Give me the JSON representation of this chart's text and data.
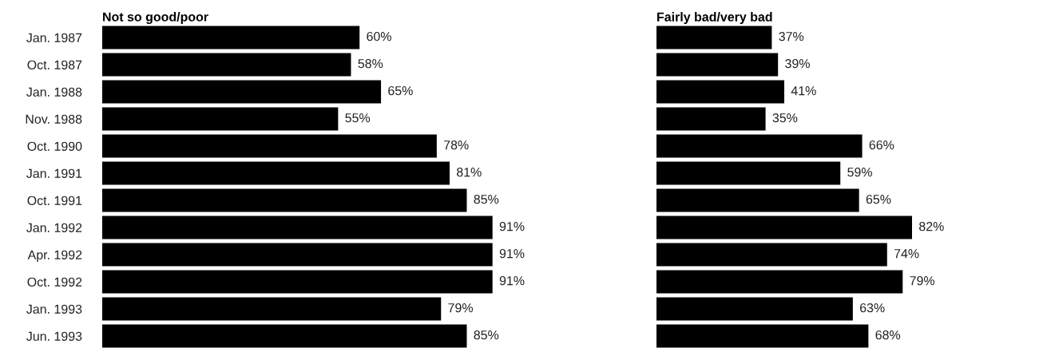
{
  "chart_data": [
    {
      "type": "bar",
      "orientation": "horizontal",
      "title": "Not so good/poor",
      "categories": [
        "Jan. 1987",
        "Oct. 1987",
        "Jan. 1988",
        "Nov. 1988",
        "Oct. 1990",
        "Jan. 1991",
        "Oct. 1991",
        "Jan. 1992",
        "Apr. 1992",
        "Oct. 1992",
        "Jan. 1993",
        "Jun. 1993"
      ],
      "values": [
        60,
        58,
        65,
        55,
        78,
        81,
        85,
        91,
        91,
        91,
        79,
        85
      ],
      "color": "#000000",
      "data_labels": true,
      "value_labels": [
        "60%",
        "58%",
        "65%",
        "55%",
        "78%",
        "81%",
        "85%",
        "91%",
        "91%",
        "91%",
        "79%",
        "85%"
      ],
      "grid": false,
      "legend": false
    },
    {
      "type": "bar",
      "orientation": "horizontal",
      "title": "Fairly bad/very bad",
      "categories": [
        null,
        null,
        null,
        null,
        null,
        null,
        null,
        null,
        null,
        null,
        null,
        null
      ],
      "values": [
        37,
        39,
        41,
        35,
        66,
        59,
        65,
        82,
        74,
        79,
        63,
        68
      ],
      "color": "#000000",
      "data_labels": true,
      "value_labels": [
        "37%",
        "39%",
        "41%",
        "35%",
        "66%",
        "59%",
        "65%",
        "82%",
        "74%",
        "79%",
        "63%",
        "68%"
      ],
      "grid": false,
      "legend": false
    }
  ]
}
